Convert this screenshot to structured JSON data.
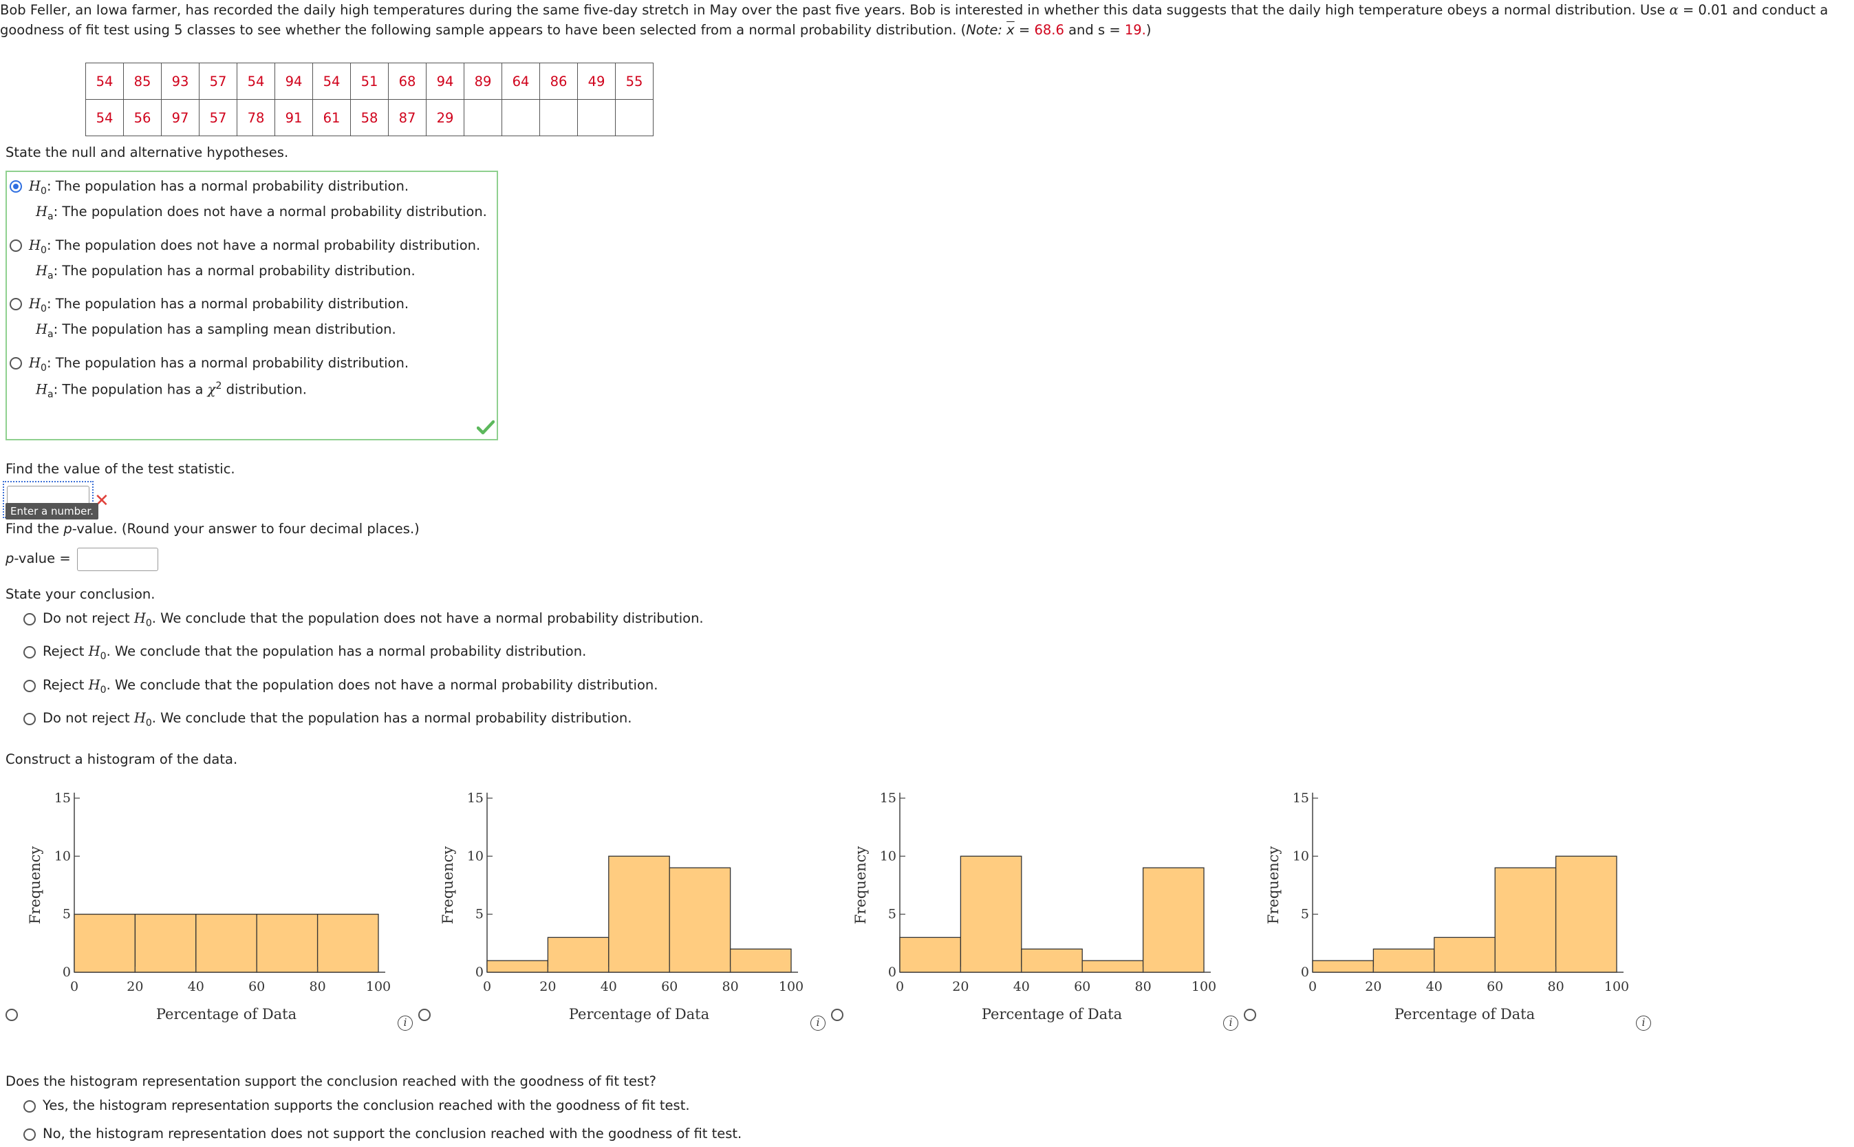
{
  "question": {
    "intro_line1_a": "Bob Feller, an Iowa farmer, has recorded the daily high temperatures during the same five-day stretch in May over the past five years. Bob is interested in whether this data suggests that the daily high temperature obeys a normal distribution. Use ",
    "alpha_symbol": "α",
    "alpha_eq": " = 0.01 and conduct a",
    "intro_line2_a": "goodness of fit test using 5 classes to see whether the following sample appears to have been selected from a normal probability distribution. (",
    "note_label": "Note:",
    "xbar_symbol": "x",
    "xbar_eq": " = ",
    "xbar_value": "68.6",
    "and_s": " and s = ",
    "s_value": "19.",
    "close_paren": ")"
  },
  "data_table": {
    "row1": [
      "54",
      "85",
      "93",
      "57",
      "54",
      "94",
      "54",
      "51",
      "68",
      "94",
      "89",
      "64",
      "86",
      "49",
      "55"
    ],
    "row2": [
      "54",
      "56",
      "97",
      "57",
      "78",
      "91",
      "61",
      "58",
      "87",
      "29",
      "",
      "",
      "",
      "",
      ""
    ]
  },
  "hypotheses": {
    "prompt": "State the null and alternative hypotheses.",
    "h0_label": "H",
    "ha_label": "H",
    "sub0": "0",
    "suba": "a",
    "options": [
      {
        "h0": ": The population has a normal probability distribution.",
        "ha": ": The population does not have a normal probability distribution.",
        "selected": true
      },
      {
        "h0": ": The population does not have a normal probability distribution.",
        "ha": ": The population has a normal probability distribution.",
        "selected": false
      },
      {
        "h0": ": The population has a normal probability distribution.",
        "ha": ": The population has a sampling mean distribution.",
        "selected": false
      },
      {
        "h0": ": The population has a normal probability distribution.",
        "ha_pre": ": The population has a ",
        "chi": "χ",
        "sup2": "2",
        "ha_post": " distribution.",
        "selected": false
      }
    ]
  },
  "test_statistic": {
    "prompt": "Find the value of the test statistic.",
    "value": "",
    "tooltip": "Enter a number."
  },
  "pvalue": {
    "prompt_a": "Find the ",
    "prompt_p": "p",
    "prompt_b": "-value. (Round your answer to four decimal places.)",
    "label_p": "p",
    "label_rest": "-value =",
    "value": ""
  },
  "conclusion": {
    "prompt": "State your conclusion.",
    "options": [
      {
        "pre": "Do not reject ",
        "post": ". We conclude that the population does not have a normal probability distribution."
      },
      {
        "pre": "Reject ",
        "post": ". We conclude that the population has a normal probability distribution."
      },
      {
        "pre": "Reject ",
        "post": ". We conclude that the population does not have a normal probability distribution."
      },
      {
        "pre": "Do not reject ",
        "post": ". We conclude that the population has a normal probability distribution."
      }
    ]
  },
  "histogram": {
    "prompt": "Construct a histogram of the data.",
    "info_symbol": "i"
  },
  "support": {
    "prompt": "Does the histogram representation support the conclusion reached with the goodness of fit test?",
    "options": [
      "Yes, the histogram representation supports the conclusion reached with the goodness of fit test.",
      "No, the histogram representation does not support the conclusion reached with the goodness of fit test."
    ]
  },
  "colors": {
    "accent_red": "#d0021b",
    "bar_fill": "#ffcc80",
    "correct_green": "#5cb85c",
    "radio_blue": "#2f6fe0"
  },
  "chart_data": [
    {
      "type": "bar",
      "xlabel": "Percentage of Data",
      "ylabel": "Frequency",
      "bin_edges": [
        0,
        20,
        40,
        60,
        80,
        100
      ],
      "values": [
        5,
        5,
        5,
        5,
        5
      ],
      "ylim": [
        0,
        15
      ],
      "yticks": [
        0,
        5,
        10,
        15
      ],
      "xticks": [
        0,
        20,
        40,
        60,
        80,
        100
      ]
    },
    {
      "type": "bar",
      "xlabel": "Percentage of Data",
      "ylabel": "Frequency",
      "bin_edges": [
        0,
        20,
        40,
        60,
        80,
        100
      ],
      "values": [
        1,
        3,
        10,
        9,
        2
      ],
      "ylim": [
        0,
        15
      ],
      "yticks": [
        0,
        5,
        10,
        15
      ],
      "xticks": [
        0,
        20,
        40,
        60,
        80,
        100
      ]
    },
    {
      "type": "bar",
      "xlabel": "Percentage of Data",
      "ylabel": "Frequency",
      "bin_edges": [
        0,
        20,
        40,
        60,
        80,
        100
      ],
      "values": [
        3,
        10,
        2,
        1,
        9
      ],
      "ylim": [
        0,
        15
      ],
      "yticks": [
        0,
        5,
        10,
        15
      ],
      "xticks": [
        0,
        20,
        40,
        60,
        80,
        100
      ]
    },
    {
      "type": "bar",
      "xlabel": "Percentage of Data",
      "ylabel": "Frequency",
      "bin_edges": [
        0,
        20,
        40,
        60,
        80,
        100
      ],
      "values": [
        1,
        2,
        3,
        9,
        10
      ],
      "ylim": [
        0,
        15
      ],
      "yticks": [
        0,
        5,
        10,
        15
      ],
      "xticks": [
        0,
        20,
        40,
        60,
        80,
        100
      ]
    }
  ]
}
